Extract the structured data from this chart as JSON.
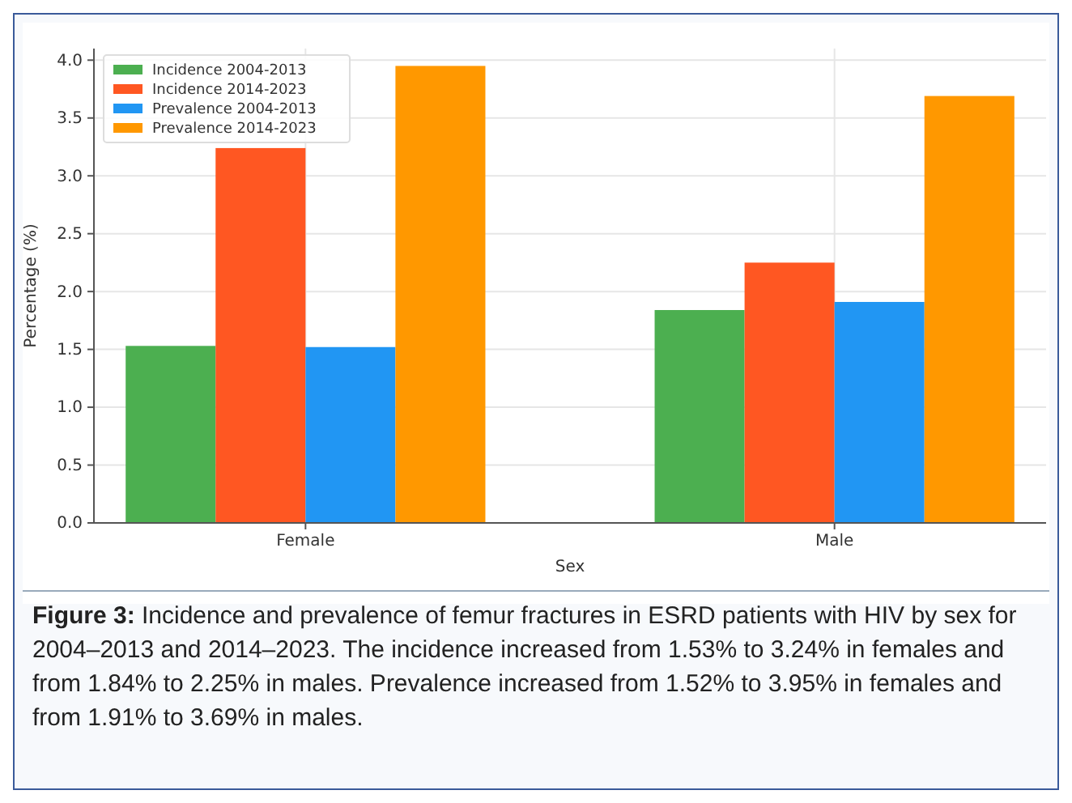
{
  "chart_data": {
    "type": "bar",
    "xlabel": "Sex",
    "ylabel": "Percentage (%)",
    "categories": [
      "Female",
      "Male"
    ],
    "series": [
      {
        "name": "Incidence 2004-2013",
        "color": "#4caf50",
        "values": [
          1.53,
          1.84
        ]
      },
      {
        "name": "Incidence 2014-2023",
        "color": "#ff5722",
        "values": [
          3.24,
          2.25
        ]
      },
      {
        "name": "Prevalence 2004-2013",
        "color": "#2196f3",
        "values": [
          1.52,
          1.91
        ]
      },
      {
        "name": "Prevalence 2014-2023",
        "color": "#ff9800",
        "values": [
          3.95,
          3.69
        ]
      }
    ],
    "ylim": [
      0,
      4.1
    ],
    "yticks": [
      {
        "value": 0,
        "label": "0.0"
      },
      {
        "value": 0.5,
        "label": "0.5"
      },
      {
        "value": 1,
        "label": "1.0"
      },
      {
        "value": 1.5,
        "label": "1.5"
      },
      {
        "value": 2,
        "label": "2.0"
      },
      {
        "value": 2.5,
        "label": "2.5"
      },
      {
        "value": 3,
        "label": "3.0"
      },
      {
        "value": 3.5,
        "label": "3.5"
      },
      {
        "value": 4,
        "label": "4.0"
      }
    ],
    "grid": true,
    "legend": "top left",
    "annotations": [
      "Figure 3:",
      "Incidence and prevalence of femur fractures in ESRD patients with HIV by sex for 2004–2013 and 2014–2023. The incidence increased from 1.53% to 3.24% in females and from 1.84% to 2.25% in males. Prevalence increased from 1.52% to 3.95% in females and from 1.91% to 3.69% in males."
    ]
  }
}
